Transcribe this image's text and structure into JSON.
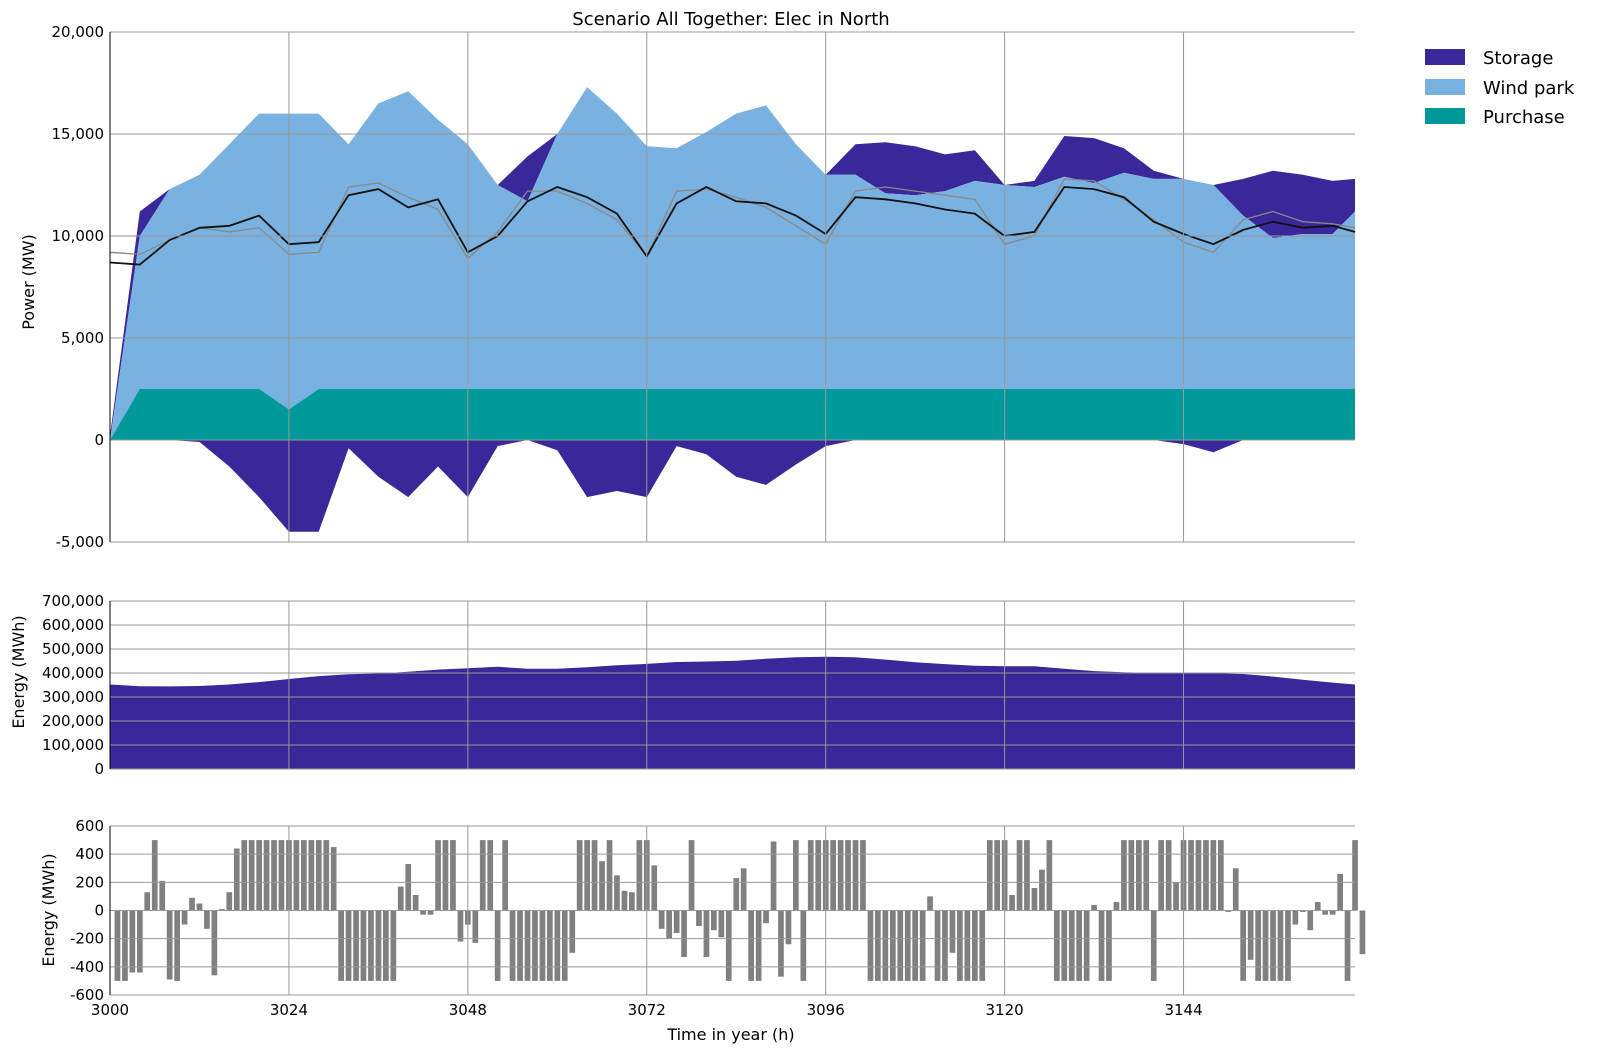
{
  "chart_data": [
    {
      "type": "area",
      "title": "Scenario All Together: Elec in North",
      "xlabel": "",
      "ylabel": "Power (MW)",
      "xlim": [
        3000,
        3167
      ],
      "ylim": [
        -5000,
        20000
      ],
      "yticks": [
        -5000,
        0,
        5000,
        10000,
        15000,
        20000
      ],
      "ytick_labels": [
        "-5,000",
        "0",
        "5,000",
        "10,000",
        "15,000",
        "20,000"
      ],
      "xticks": [
        3000,
        3024,
        3048,
        3072,
        3096,
        3120,
        3144
      ],
      "grid": true,
      "legend": {
        "placement": "outside-top-right",
        "entries": [
          "Storage",
          "Wind park",
          "Purchase"
        ]
      },
      "colors": {
        "Storage": "#3a2799",
        "Wind park": "#79b1e0",
        "Purchase": "#009999",
        "demand": "#111111",
        "reference": "#888888"
      },
      "x": [
        3000,
        3004,
        3008,
        3012,
        3016,
        3020,
        3024,
        3028,
        3032,
        3036,
        3040,
        3044,
        3048,
        3052,
        3056,
        3060,
        3064,
        3068,
        3072,
        3076,
        3080,
        3084,
        3088,
        3092,
        3096,
        3100,
        3104,
        3108,
        3112,
        3116,
        3120,
        3124,
        3128,
        3132,
        3136,
        3140,
        3144,
        3148,
        3152,
        3156,
        3160,
        3164,
        3167
      ],
      "series": [
        {
          "name": "Purchase",
          "values": [
            0,
            2500,
            2500,
            2500,
            2500,
            2500,
            1500,
            2500,
            2500,
            2500,
            2500,
            2500,
            2500,
            2500,
            2500,
            2500,
            2500,
            2500,
            2500,
            2500,
            2500,
            2500,
            2500,
            2500,
            2500,
            2500,
            2500,
            2500,
            2500,
            2500,
            2500,
            2500,
            2500,
            2500,
            2500,
            2500,
            2500,
            2500,
            2500,
            2500,
            2500,
            2500,
            2500
          ]
        },
        {
          "name": "Wind park",
          "values": [
            0,
            7500,
            9800,
            10500,
            12000,
            13500,
            14500,
            13500,
            12000,
            14000,
            14600,
            13200,
            12000,
            10000,
            9200,
            12500,
            14800,
            13500,
            11900,
            11800,
            12600,
            13500,
            13900,
            12000,
            10500,
            10500,
            9600,
            9500,
            9700,
            10200,
            10000,
            9900,
            10400,
            10100,
            10600,
            10300,
            10300,
            10000,
            8500,
            7400,
            7600,
            7600,
            8700
          ]
        },
        {
          "name": "Storage",
          "values": [
            200,
            1200,
            0,
            -100,
            -1300,
            -2800,
            -4500,
            -4500,
            -400,
            -1800,
            -2800,
            -1300,
            -2800,
            -300,
            2200,
            -500,
            -2800,
            -2500,
            -2800,
            -300,
            -700,
            -1800,
            -2200,
            -1200,
            -300,
            1500,
            2500,
            2400,
            1800,
            1500,
            0,
            300,
            2000,
            2200,
            1200,
            400,
            -200,
            -600,
            1800,
            3300,
            2900,
            2600,
            1600
          ]
        },
        {
          "name": "",
          "values": [
            8700,
            8600,
            9800,
            10400,
            10500,
            11000,
            9600,
            9700,
            12000,
            12300,
            11400,
            11800,
            9200,
            10000,
            11700,
            12400,
            11900,
            11100,
            9000,
            11600,
            12400,
            11700,
            11600,
            11000,
            10100,
            11900,
            11800,
            11600,
            11300,
            11100,
            10000,
            10200,
            12400,
            12300,
            11900,
            10700,
            10100,
            9600,
            10300,
            10700,
            10400,
            10500,
            10200
          ]
        },
        {
          "name": "",
          "values": [
            9200,
            9100,
            9800,
            10400,
            10200,
            10400,
            9100,
            9200,
            12400,
            12600,
            11900,
            11300,
            8900,
            10200,
            12200,
            12200,
            11600,
            10800,
            9000,
            12200,
            12300,
            11900,
            11400,
            10500,
            9600,
            12200,
            12400,
            12200,
            12000,
            11800,
            9600,
            10000,
            12800,
            12700,
            11800,
            10800,
            9700,
            9200,
            10800,
            11200,
            10700,
            10600,
            10400
          ]
        }
      ]
    },
    {
      "type": "area",
      "xlabel": "",
      "ylabel": "Energy (MWh)",
      "xlim": [
        3000,
        3167
      ],
      "ylim": [
        0,
        700000
      ],
      "yticks": [
        0,
        100000,
        200000,
        300000,
        400000,
        500000,
        600000,
        700000
      ],
      "ytick_labels": [
        "0",
        "100,000",
        "200,000",
        "300,000",
        "400,000",
        "500,000",
        "600,000",
        "700,000"
      ],
      "xticks": [
        3000,
        3024,
        3048,
        3072,
        3096,
        3120,
        3144
      ],
      "grid": true,
      "colors": {
        "fill": "#3a2799"
      },
      "x": [
        3000,
        3004,
        3008,
        3012,
        3016,
        3020,
        3024,
        3028,
        3032,
        3036,
        3040,
        3044,
        3048,
        3052,
        3056,
        3060,
        3064,
        3068,
        3072,
        3076,
        3080,
        3084,
        3088,
        3092,
        3096,
        3100,
        3104,
        3108,
        3112,
        3116,
        3120,
        3124,
        3128,
        3132,
        3136,
        3140,
        3144,
        3148,
        3152,
        3156,
        3160,
        3164,
        3167
      ],
      "series": [
        {
          "name": "",
          "values": [
            352000,
            345000,
            344000,
            346000,
            352000,
            362000,
            375000,
            387000,
            395000,
            398000,
            405000,
            414000,
            420000,
            426000,
            418000,
            418000,
            424000,
            432000,
            438000,
            446000,
            448000,
            451000,
            459000,
            466000,
            468000,
            466000,
            456000,
            445000,
            437000,
            430000,
            428000,
            428000,
            418000,
            408000,
            403000,
            400000,
            398000,
            399000,
            396000,
            385000,
            372000,
            360000,
            352000
          ]
        }
      ]
    },
    {
      "type": "bar",
      "xlabel": "Time in year (h)",
      "ylabel": "Energy (MWh)",
      "xlim": [
        3000,
        3167
      ],
      "ylim": [
        -600,
        600
      ],
      "yticks": [
        -600,
        -400,
        -200,
        0,
        200,
        400,
        600
      ],
      "ytick_labels": [
        "-600",
        "-400",
        "-200",
        "0",
        "200",
        "400",
        "600"
      ],
      "xticks": [
        3000,
        3024,
        3048,
        3072,
        3096,
        3120,
        3144
      ],
      "xtick_labels": [
        "3000",
        "3024",
        "3048",
        "3072",
        "3096",
        "3120",
        "3144"
      ],
      "grid": true,
      "colors": {
        "bar": "#808080"
      },
      "x_start": 3001,
      "values": [
        -500,
        -500,
        -440,
        -440,
        130,
        500,
        210,
        -490,
        -500,
        -100,
        90,
        50,
        -130,
        -460,
        10,
        130,
        440,
        500,
        500,
        500,
        500,
        500,
        500,
        500,
        500,
        500,
        500,
        500,
        500,
        450,
        -500,
        -500,
        -500,
        -500,
        -500,
        -500,
        -500,
        -500,
        170,
        330,
        110,
        -30,
        -30,
        500,
        500,
        500,
        -220,
        -100,
        -230,
        500,
        500,
        -500,
        500,
        -500,
        -500,
        -500,
        -500,
        -500,
        -500,
        -500,
        -500,
        -300,
        500,
        500,
        500,
        350,
        500,
        250,
        140,
        130,
        500,
        500,
        320,
        -130,
        -200,
        -160,
        -330,
        500,
        -110,
        -330,
        -140,
        -190,
        -500,
        230,
        300,
        -500,
        -500,
        -90,
        490,
        -470,
        -240,
        500,
        -500,
        500,
        500,
        500,
        500,
        500,
        500,
        500,
        500,
        -500,
        -500,
        -500,
        -500,
        -500,
        -500,
        -500,
        -500,
        100,
        -500,
        -500,
        -300,
        -500,
        -500,
        -500,
        -500,
        500,
        500,
        500,
        110,
        500,
        500,
        160,
        290,
        500,
        -500,
        -500,
        -500,
        -500,
        -500,
        40,
        -500,
        -500,
        60,
        500,
        500,
        500,
        500,
        -500,
        500,
        500,
        200,
        500,
        500,
        500,
        500,
        500,
        500,
        -10,
        300,
        -500,
        -350,
        -500,
        -500,
        -500,
        -500,
        -500,
        -100,
        -10,
        -140,
        60,
        -30,
        -30,
        260,
        -500,
        500,
        -310
      ]
    }
  ]
}
